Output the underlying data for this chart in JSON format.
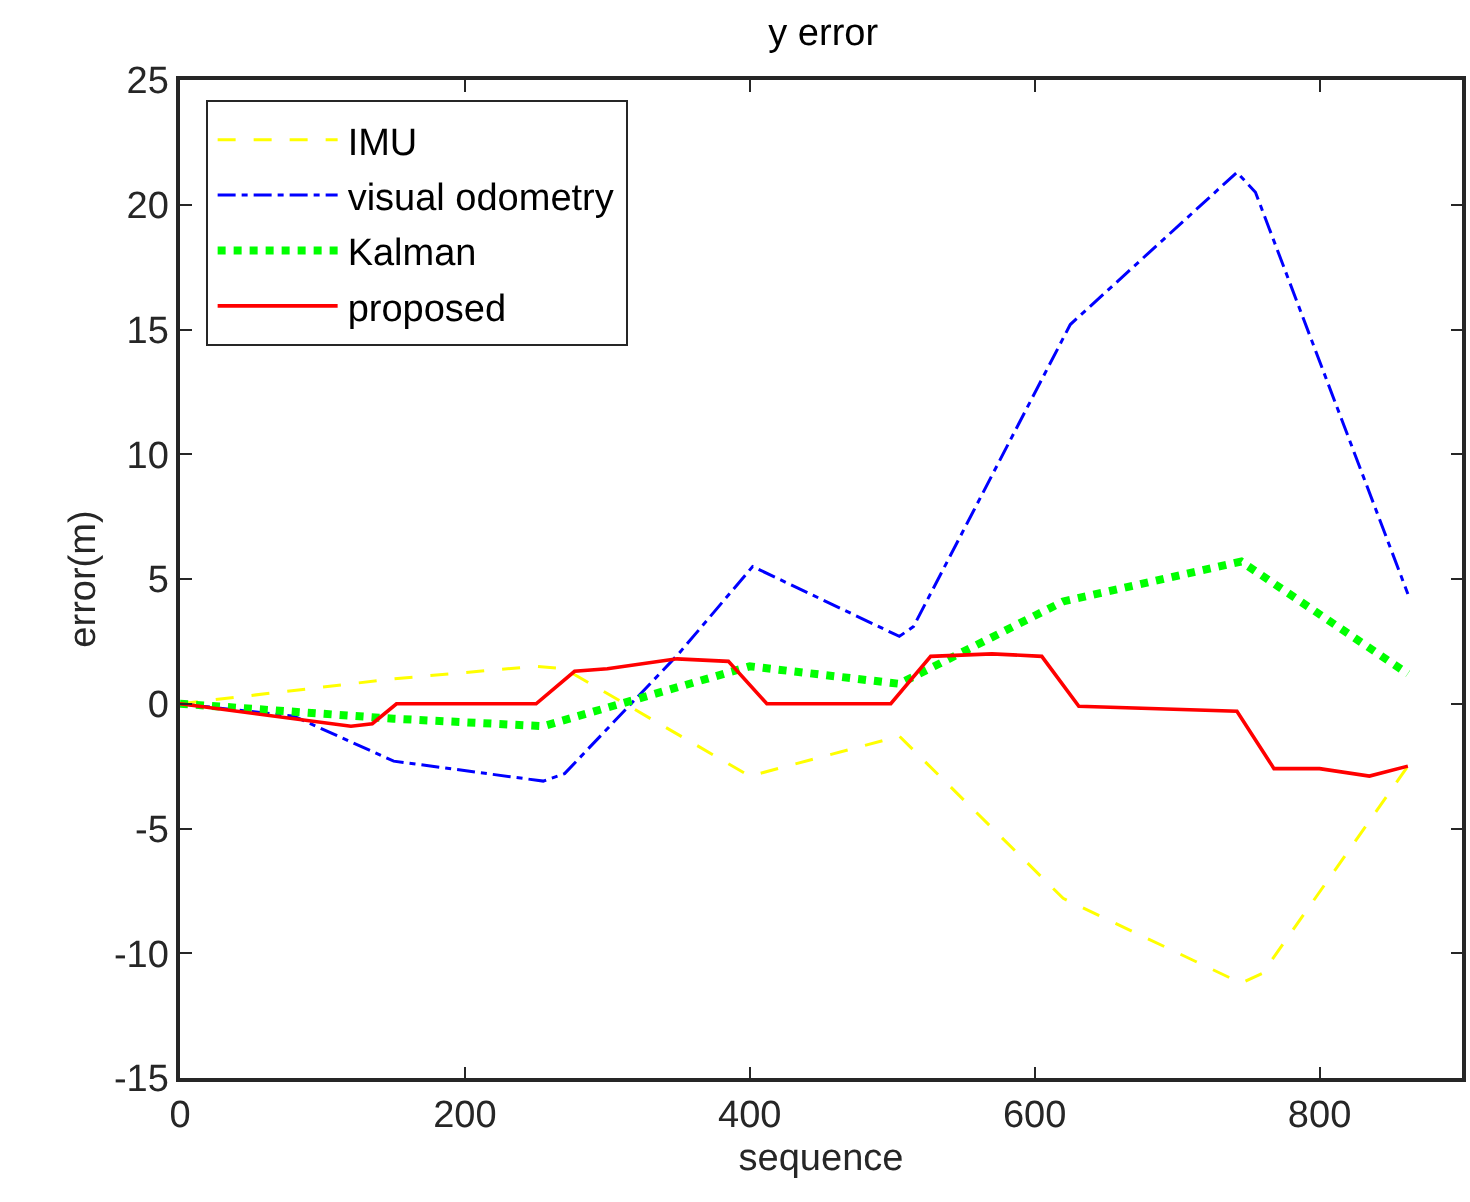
{
  "chart_data": {
    "type": "line",
    "title": "y error",
    "xlabel": "sequence",
    "ylabel": "error(m)",
    "xlim": [
      0,
      900
    ],
    "xticks": [
      0,
      200,
      400,
      600,
      800
    ],
    "ylim": [
      -15,
      25
    ],
    "yticks": [
      -15,
      -10,
      -5,
      0,
      5,
      10,
      15,
      20,
      25
    ],
    "legend": "top left",
    "series": [
      {
        "name": "IMU",
        "color": "#ffff00",
        "line_style": "dashed",
        "x": [
          0,
          150,
          250,
          270,
          400,
          505,
          620,
          745,
          760,
          862
        ],
        "values": [
          0,
          1.0,
          1.5,
          1.4,
          -2.9,
          -1.3,
          -7.8,
          -11.2,
          -10.8,
          -2.5
        ]
      },
      {
        "name": "visual odometry",
        "color": "#0000ff",
        "line_style": "dashdot",
        "x": [
          0,
          80,
          150,
          255,
          270,
          350,
          402,
          505,
          515,
          625,
          742,
          755,
          862
        ],
        "values": [
          0,
          -0.5,
          -2.3,
          -3.1,
          -2.8,
          2.0,
          5.5,
          2.7,
          3.1,
          15.2,
          21.3,
          20.5,
          4.4
        ]
      },
      {
        "name": "Kalman",
        "color": "#00ff00",
        "line_style": "dotted",
        "x": [
          0,
          150,
          255,
          400,
          505,
          620,
          745,
          862
        ],
        "values": [
          0,
          -0.6,
          -0.9,
          1.5,
          0.8,
          4.1,
          5.7,
          1.2
        ]
      },
      {
        "name": "proposed",
        "color": "#ff0000",
        "line_style": "solid",
        "x": [
          0,
          120,
          135,
          152,
          250,
          277,
          300,
          349,
          385,
          412,
          499,
          527,
          570,
          605,
          631,
          742,
          768,
          800,
          835,
          862
        ],
        "values": [
          0,
          -0.9,
          -0.8,
          0,
          0,
          1.3,
          1.4,
          1.8,
          1.7,
          0,
          0,
          1.9,
          2.0,
          1.9,
          -0.1,
          -0.3,
          -2.6,
          -2.6,
          -2.9,
          -2.5
        ]
      }
    ]
  }
}
